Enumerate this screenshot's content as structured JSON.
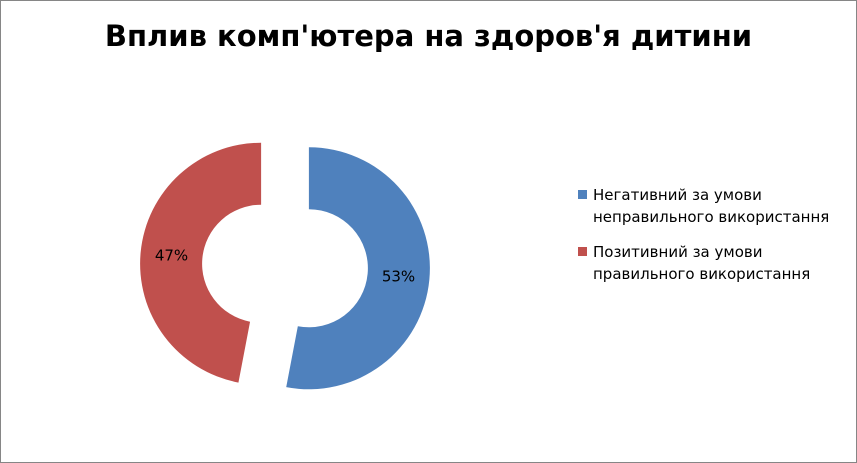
{
  "chart_data": {
    "type": "pie",
    "variant": "exploded-doughnut",
    "title": "Вплив комп'ютера на здоров'я дитини",
    "categories": [
      "Негативний за умови неправильного використання",
      "Позитивний за умови правильного використання"
    ],
    "values": [
      53,
      47
    ],
    "value_labels": [
      "53%",
      "47%"
    ],
    "colors": [
      "#4F81BD",
      "#C0504D"
    ],
    "legend_position": "right"
  },
  "legend": {
    "items": [
      {
        "label": "Негативний за умови неправильного використання",
        "color": "#4F81BD"
      },
      {
        "label": "Позитивний за умови правильного використання",
        "color": "#C0504D"
      }
    ]
  }
}
